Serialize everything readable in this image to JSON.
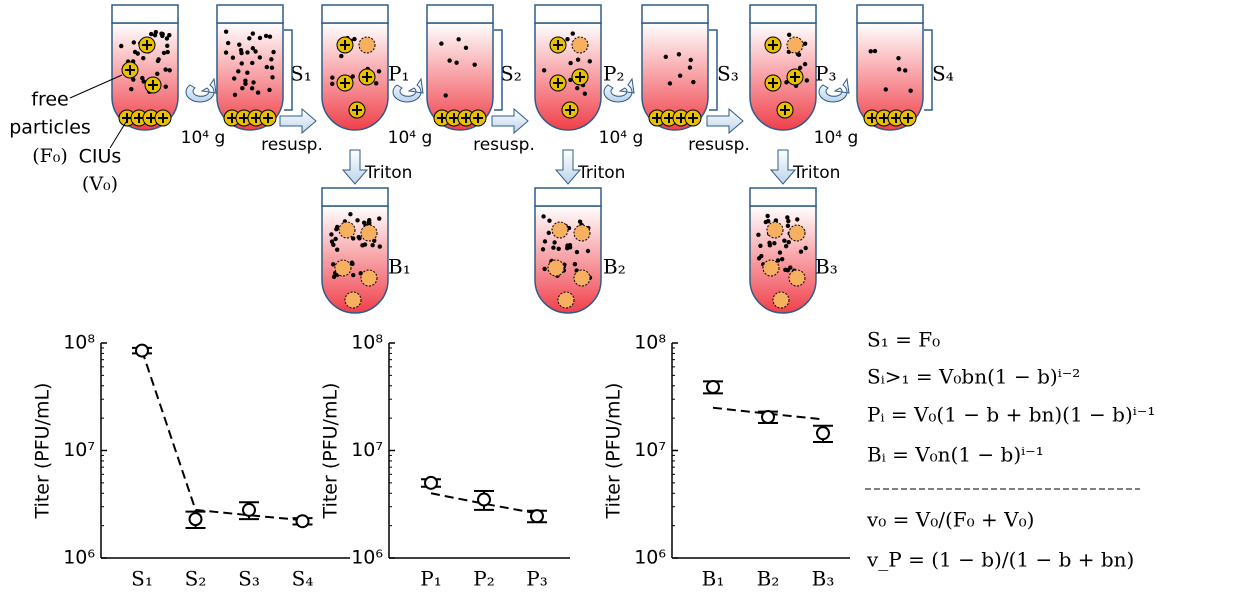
{
  "diagram": {
    "tube_labels": [
      "S₁",
      "P₁",
      "S₂",
      "P₂",
      "S₃",
      "P₃",
      "S₄",
      "B₁",
      "B₂",
      "B₃"
    ],
    "free_particles": [
      "free",
      "particles",
      "(F₀)"
    ],
    "cius": [
      "CIUs",
      "(V₀)"
    ],
    "spin": [
      "10⁴ g",
      "10⁴ g",
      "10⁴ g",
      "10⁴ g"
    ],
    "resusp": [
      "resusp.",
      "resusp.",
      "resusp."
    ],
    "triton": [
      "Triton",
      "Triton",
      "Triton"
    ]
  },
  "equations": [
    "S₁ = F₀",
    "Sᵢ>₁ = V₀bn(1 − b)ⁱ⁻²",
    "Pᵢ = V₀(1 − b + bn)(1 − b)ⁱ⁻¹",
    "Bᵢ = V₀n(1 − b)ⁱ⁻¹",
    "v₀ = V₀/(F₀ + V₀)",
    "v_P = (1 − b)/(1 − b + bn)"
  ],
  "chart_data": [
    {
      "type": "errorbar",
      "y_label": "Titer (PFU/mL)",
      "log_scale": true,
      "categories": [
        "S₁",
        "S₂",
        "S₃",
        "S₄"
      ],
      "values": [
        85000000,
        2300000,
        2800000,
        2200000
      ],
      "errors": [
        5000000,
        400000,
        500000,
        150000
      ],
      "fit": [
        85000000,
        2800000,
        2500000,
        2250000
      ],
      "ylim": [
        1000000,
        100000000
      ],
      "yticks": [
        {
          "value": 1000000,
          "label": "10⁶"
        },
        {
          "value": 10000000,
          "label": "10⁷"
        },
        {
          "value": 100000000,
          "label": "10⁸"
        }
      ]
    },
    {
      "type": "errorbar",
      "y_label": "Titer (PFU/mL)",
      "log_scale": true,
      "categories": [
        "P₁",
        "P₂",
        "P₃"
      ],
      "values": [
        5000000,
        3500000,
        2450000
      ],
      "errors": [
        400000,
        700000,
        300000
      ],
      "fit": [
        4000000,
        3200000,
        2600000
      ],
      "ylim": [
        1000000,
        100000000
      ],
      "yticks": [
        {
          "value": 1000000,
          "label": "10⁶"
        },
        {
          "value": 10000000,
          "label": "10⁷"
        },
        {
          "value": 100000000,
          "label": "10⁸"
        }
      ]
    },
    {
      "type": "errorbar",
      "y_label": "Titer (PFU/mL)",
      "log_scale": true,
      "categories": [
        "B₁",
        "B₂",
        "B₃"
      ],
      "values": [
        39000000,
        20500000,
        14500000
      ],
      "errors": [
        5000000,
        2500000,
        2500000
      ],
      "fit": [
        25000000,
        22000000,
        19500000
      ],
      "ylim": [
        1000000,
        100000000
      ],
      "yticks": [
        {
          "value": 1000000,
          "label": "10⁶"
        },
        {
          "value": 10000000,
          "label": "10⁷"
        },
        {
          "value": 100000000,
          "label": "10⁸"
        }
      ]
    }
  ]
}
